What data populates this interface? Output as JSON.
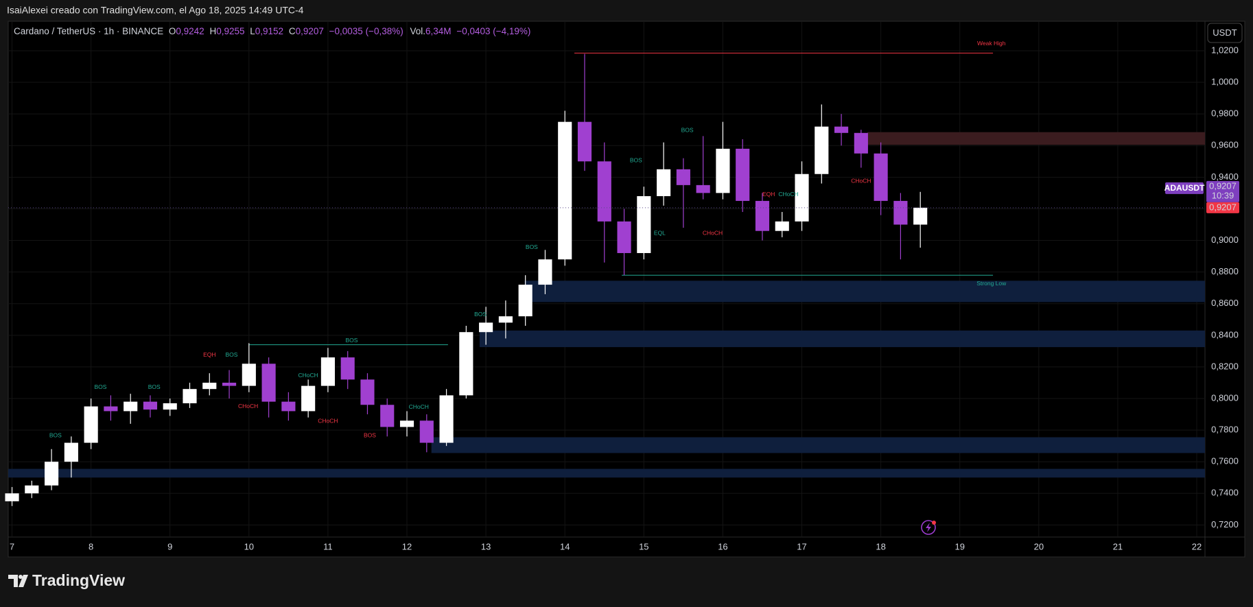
{
  "header": {
    "caption": "IsaiAlexei creado con TradingView.com, el Ago 18, 2025 14:49 UTC-4"
  },
  "footer": {
    "brand": "TradingView"
  },
  "chart_data": {
    "type": "candlestick",
    "legend": {
      "symbol": "Cardano / TetherUS · 1h · BINANCE",
      "o_label": "O",
      "o": "0,9242",
      "h_label": "H",
      "h": "0,9255",
      "l_label": "L",
      "l": "0,9152",
      "c_label": "C",
      "c": "0,9207",
      "change": "−0,0035 (−0,38%)",
      "vol_label": "Vol.",
      "vol": "6,34M",
      "vol_change": "−0,0403 (−4,19%)"
    },
    "currency": "USDT",
    "symbol_tag": "ADAUSDT",
    "countdown": "10:39",
    "last_price": {
      "value": 0.9207,
      "label": "0,9207"
    },
    "up_color": "#ffffff",
    "down_color": "#a040d0",
    "grid": true,
    "xlim": [
      6.952,
      22.104
    ],
    "xticks": [
      7,
      8,
      9,
      10,
      11,
      12,
      13,
      14,
      15,
      16,
      17,
      18,
      19,
      20,
      21,
      22
    ],
    "ylim": [
      0.7128,
      1.0382
    ],
    "yticks": [
      {
        "value": 0.72,
        "label": "0,7200"
      },
      {
        "value": 0.74,
        "label": "0,7400"
      },
      {
        "value": 0.76,
        "label": "0,7600"
      },
      {
        "value": 0.78,
        "label": "0,7800"
      },
      {
        "value": 0.8,
        "label": "0,8000"
      },
      {
        "value": 0.82,
        "label": "0,8200"
      },
      {
        "value": 0.84,
        "label": "0,8400"
      },
      {
        "value": 0.86,
        "label": "0,8600"
      },
      {
        "value": 0.88,
        "label": "0,8800"
      },
      {
        "value": 0.9,
        "label": "0,9000"
      },
      {
        "value": 0.92,
        "label": "0,9200"
      },
      {
        "value": 0.94,
        "label": "0,9400"
      },
      {
        "value": 0.96,
        "label": "0,9600"
      },
      {
        "value": 0.98,
        "label": "0,9800"
      },
      {
        "value": 1.0,
        "label": "1,0000"
      },
      {
        "value": 1.02,
        "label": "1,0200"
      }
    ],
    "x": [
      7.0,
      7.25,
      7.5,
      7.75,
      8.0,
      8.25,
      8.5,
      8.75,
      9.0,
      9.25,
      9.5,
      9.75,
      10.0,
      10.25,
      10.5,
      10.75,
      11.0,
      11.25,
      11.5,
      11.75,
      12.0,
      12.25,
      12.5,
      12.75,
      13.0,
      13.25,
      13.5,
      13.75,
      14.0,
      14.25,
      14.5,
      14.75,
      15.0,
      15.25,
      15.5,
      15.75,
      16.0,
      16.25,
      16.5,
      16.75,
      17.0,
      17.25,
      17.5,
      17.75,
      18.0,
      18.25,
      18.5
    ],
    "open": [
      0.735,
      0.74,
      0.745,
      0.76,
      0.772,
      0.795,
      0.792,
      0.798,
      0.793,
      0.797,
      0.806,
      0.81,
      0.808,
      0.822,
      0.798,
      0.792,
      0.808,
      0.826,
      0.812,
      0.796,
      0.782,
      0.786,
      0.772,
      0.802,
      0.842,
      0.848,
      0.852,
      0.872,
      0.888,
      0.975,
      0.95,
      0.912,
      0.892,
      0.928,
      0.945,
      0.935,
      0.93,
      0.958,
      0.925,
      0.906,
      0.912,
      0.942,
      0.972,
      0.968,
      0.955,
      0.925,
      0.91
    ],
    "high": [
      0.744,
      0.748,
      0.768,
      0.776,
      0.8,
      0.802,
      0.803,
      0.802,
      0.8,
      0.81,
      0.816,
      0.818,
      0.835,
      0.826,
      0.804,
      0.812,
      0.832,
      0.83,
      0.816,
      0.8,
      0.792,
      0.79,
      0.806,
      0.846,
      0.858,
      0.862,
      0.878,
      0.894,
      0.982,
      1.018,
      0.962,
      0.92,
      0.934,
      0.962,
      0.952,
      0.966,
      0.975,
      0.964,
      0.93,
      0.918,
      0.95,
      0.986,
      0.98,
      0.97,
      0.962,
      0.93,
      0.9307
    ],
    "low": [
      0.732,
      0.737,
      0.742,
      0.75,
      0.768,
      0.786,
      0.784,
      0.788,
      0.789,
      0.794,
      0.802,
      0.8,
      0.804,
      0.788,
      0.786,
      0.788,
      0.804,
      0.806,
      0.79,
      0.776,
      0.776,
      0.766,
      0.77,
      0.8,
      0.834,
      0.838,
      0.846,
      0.866,
      0.884,
      0.944,
      0.886,
      0.878,
      0.888,
      0.922,
      0.908,
      0.926,
      0.926,
      0.918,
      0.9,
      0.902,
      0.906,
      0.936,
      0.96,
      0.946,
      0.916,
      0.888,
      0.8954
    ],
    "close": [
      0.74,
      0.745,
      0.76,
      0.772,
      0.795,
      0.792,
      0.798,
      0.793,
      0.797,
      0.806,
      0.81,
      0.808,
      0.822,
      0.798,
      0.792,
      0.808,
      0.826,
      0.812,
      0.796,
      0.782,
      0.786,
      0.772,
      0.802,
      0.842,
      0.848,
      0.852,
      0.872,
      0.888,
      0.975,
      0.95,
      0.912,
      0.892,
      0.928,
      0.945,
      0.935,
      0.93,
      0.958,
      0.925,
      0.906,
      0.912,
      0.942,
      0.972,
      0.968,
      0.955,
      0.925,
      0.91,
      0.9207
    ],
    "zones": [
      {
        "start": 17.83,
        "top": 0.9685,
        "bottom": 0.9605,
        "color": "#3b1c1f"
      },
      {
        "start": 13.49,
        "top": 0.8745,
        "bottom": 0.861,
        "color": "#0f1f3d"
      },
      {
        "start": 12.92,
        "top": 0.843,
        "bottom": 0.8325,
        "color": "#0f1f3d"
      },
      {
        "start": 12.31,
        "top": 0.7755,
        "bottom": 0.7655,
        "color": "#0f1f3d"
      },
      {
        "start": 6.952,
        "top": 0.7555,
        "bottom": 0.75,
        "color": "#0f1f3d"
      }
    ],
    "levels": [
      {
        "price": 1.0185,
        "start": 14.12,
        "end": 19.42,
        "color": "#f23645"
      },
      {
        "price": 0.878,
        "start": 14.72,
        "end": 19.42,
        "color": "#22ab94"
      },
      {
        "price": 0.834,
        "start": 10.0,
        "end": 12.52,
        "color": "#22ab94"
      }
    ],
    "annotations": [
      {
        "text": "BOS",
        "x": 7.55,
        "y": 0.7765,
        "color": "#22ab94"
      },
      {
        "text": "BOS",
        "x": 8.12,
        "y": 0.807,
        "color": "#22ab94"
      },
      {
        "text": "BOS",
        "x": 8.8,
        "y": 0.807,
        "color": "#22ab94"
      },
      {
        "text": "EQH",
        "x": 9.5,
        "y": 0.8275,
        "color": "#f23645"
      },
      {
        "text": "BOS",
        "x": 9.78,
        "y": 0.8275,
        "color": "#22ab94"
      },
      {
        "text": "CHoCH",
        "x": 9.99,
        "y": 0.795,
        "color": "#f23645"
      },
      {
        "text": "BOS",
        "x": 11.3,
        "y": 0.8365,
        "color": "#22ab94"
      },
      {
        "text": "CHoCH",
        "x": 10.75,
        "y": 0.8145,
        "color": "#22ab94"
      },
      {
        "text": "CHoCH",
        "x": 11.0,
        "y": 0.7855,
        "color": "#f23645"
      },
      {
        "text": "BOS",
        "x": 11.53,
        "y": 0.7765,
        "color": "#f23645"
      },
      {
        "text": "CHoCH",
        "x": 12.15,
        "y": 0.7945,
        "color": "#22ab94"
      },
      {
        "text": "BOS",
        "x": 12.93,
        "y": 0.853,
        "color": "#22ab94"
      },
      {
        "text": "BOS",
        "x": 13.58,
        "y": 0.8955,
        "color": "#22ab94"
      },
      {
        "text": "BOS",
        "x": 14.9,
        "y": 0.9505,
        "color": "#22ab94"
      },
      {
        "text": "BOS",
        "x": 15.55,
        "y": 0.9695,
        "color": "#22ab94"
      },
      {
        "text": "EQL",
        "x": 15.2,
        "y": 0.9045,
        "color": "#22ab94"
      },
      {
        "text": "CHoCH",
        "x": 15.87,
        "y": 0.9045,
        "color": "#f23645"
      },
      {
        "text": "EQH",
        "x": 16.58,
        "y": 0.929,
        "color": "#f23645"
      },
      {
        "text": "CHoCH",
        "x": 16.83,
        "y": 0.929,
        "color": "#22ab94"
      },
      {
        "text": "CHoCH",
        "x": 17.75,
        "y": 0.9375,
        "color": "#f23645"
      },
      {
        "text": "Weak High",
        "x": 19.4,
        "y": 1.0245,
        "color": "#f23645"
      },
      {
        "text": "Strong Low",
        "x": 19.4,
        "y": 0.8725,
        "color": "#22ab94"
      }
    ]
  }
}
